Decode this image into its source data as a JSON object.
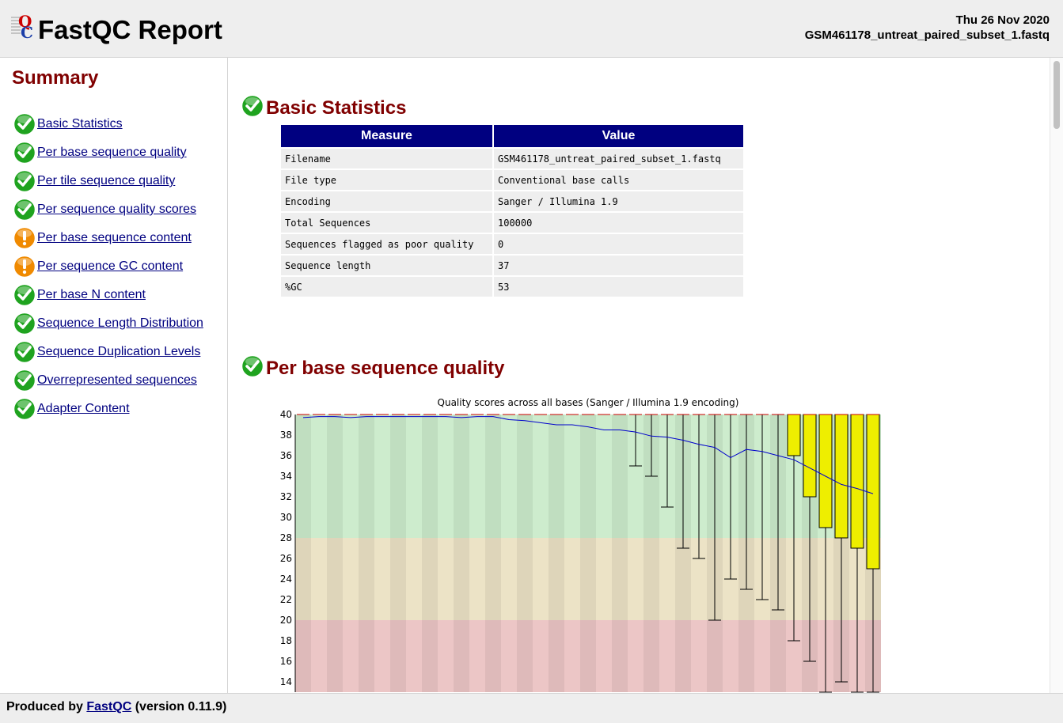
{
  "header": {
    "title": "FastQC Report",
    "date": "Thu 26 Nov 2020",
    "filename": "GSM461178_untreat_paired_subset_1.fastq"
  },
  "sidebar": {
    "title": "Summary",
    "items": [
      {
        "label": "Basic Statistics",
        "status": "pass"
      },
      {
        "label": "Per base sequence quality",
        "status": "pass"
      },
      {
        "label": "Per tile sequence quality",
        "status": "pass"
      },
      {
        "label": "Per sequence quality scores",
        "status": "pass"
      },
      {
        "label": "Per base sequence content",
        "status": "warn"
      },
      {
        "label": "Per sequence GC content",
        "status": "warn"
      },
      {
        "label": "Per base N content",
        "status": "pass"
      },
      {
        "label": "Sequence Length Distribution",
        "status": "pass"
      },
      {
        "label": "Sequence Duplication Levels",
        "status": "pass"
      },
      {
        "label": "Overrepresented sequences",
        "status": "pass"
      },
      {
        "label": "Adapter Content",
        "status": "pass"
      }
    ]
  },
  "basic_stats": {
    "title": "Basic Statistics",
    "headers": [
      "Measure",
      "Value"
    ],
    "rows": [
      [
        "Filename",
        "GSM461178_untreat_paired_subset_1.fastq"
      ],
      [
        "File type",
        "Conventional base calls"
      ],
      [
        "Encoding",
        "Sanger / Illumina 1.9"
      ],
      [
        "Total Sequences",
        "100000"
      ],
      [
        "Sequences flagged as poor quality",
        "0"
      ],
      [
        "Sequence length",
        "37"
      ],
      [
        "%GC",
        "53"
      ]
    ]
  },
  "quality_section": {
    "title": "Per base sequence quality"
  },
  "chart_data": {
    "type": "box",
    "title": "Quality scores across all bases (Sanger / Illumina 1.9 encoding)",
    "ylim": [
      13,
      40
    ],
    "yticks": [
      14,
      16,
      18,
      20,
      22,
      24,
      26,
      28,
      30,
      32,
      34,
      36,
      38,
      40
    ],
    "zones": [
      {
        "from": 28,
        "to": 40,
        "color": "#cdeccd"
      },
      {
        "from": 20,
        "to": 28,
        "color": "#ece3c6"
      },
      {
        "from": 0,
        "to": 20,
        "color": "#ecc6c6"
      }
    ],
    "positions": 37,
    "mean": [
      39.7,
      39.8,
      39.8,
      39.7,
      39.8,
      39.8,
      39.8,
      39.8,
      39.8,
      39.8,
      39.7,
      39.8,
      39.8,
      39.5,
      39.4,
      39.2,
      39.0,
      39.0,
      38.8,
      38.5,
      38.5,
      38.3,
      37.9,
      37.8,
      37.5,
      37.1,
      36.8,
      35.8,
      36.6,
      36.4,
      36.0,
      35.6,
      34.8,
      34.0,
      33.2,
      32.8,
      32.3
    ],
    "box_low": [
      40,
      40,
      40,
      40,
      40,
      40,
      40,
      40,
      40,
      40,
      40,
      40,
      40,
      40,
      40,
      40,
      40,
      40,
      40,
      40,
      40,
      40,
      40,
      40,
      40,
      40,
      40,
      40,
      40,
      40,
      40,
      36,
      32,
      29,
      28,
      27,
      25
    ],
    "box_high": [
      40,
      40,
      40,
      40,
      40,
      40,
      40,
      40,
      40,
      40,
      40,
      40,
      40,
      40,
      40,
      40,
      40,
      40,
      40,
      40,
      40,
      40,
      40,
      40,
      40,
      40,
      40,
      40,
      40,
      40,
      40,
      40,
      40,
      40,
      40,
      40,
      40
    ],
    "whisker_low": [
      40,
      40,
      40,
      40,
      40,
      40,
      40,
      40,
      40,
      40,
      40,
      40,
      40,
      40,
      40,
      40,
      40,
      40,
      40,
      40,
      40,
      35,
      34,
      31,
      27,
      26,
      20,
      24,
      23,
      22,
      21,
      18,
      16,
      13,
      14,
      13,
      13
    ]
  },
  "footer": {
    "prefix": "Produced by",
    "link": "FastQC",
    "suffix": "(version 0.11.9)"
  },
  "colors": {
    "accent_title": "#800000",
    "table_header": "#000080",
    "pass": "#1fa31f",
    "warn": "#f08a00"
  }
}
